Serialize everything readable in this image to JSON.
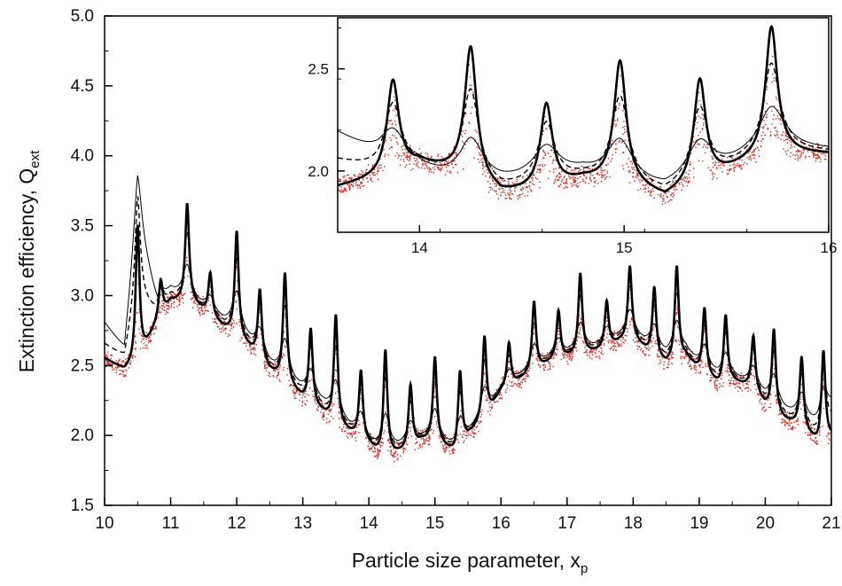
{
  "chart_data": [
    {
      "id": "main",
      "type": "line",
      "xlabel": "Particle size parameter, x",
      "xlabel_sub": "p",
      "ylabel": "Extinction efficiency, Q",
      "ylabel_sub": "ext",
      "xlim": [
        10,
        21
      ],
      "ylim": [
        1.5,
        5.0
      ],
      "xticks": [
        10,
        11,
        12,
        13,
        14,
        15,
        16,
        17,
        18,
        19,
        20,
        21
      ],
      "yticks": [
        1.5,
        2.0,
        2.5,
        3.0,
        3.5,
        4.0,
        4.5,
        5.0
      ],
      "xtick_labels": [
        "10",
        "11",
        "12",
        "13",
        "14",
        "15",
        "16",
        "17",
        "18",
        "19",
        "20",
        "21"
      ],
      "ytick_labels": [
        "1.5",
        "2.0",
        "2.5",
        "3.0",
        "3.5",
        "4.0",
        "4.5",
        "5.0"
      ],
      "grid": false,
      "colors": {
        "curves": "#000000",
        "scatter": "#e0201b"
      },
      "series": [
        {
          "style": "thick-solid",
          "x": [
            10.0,
            10.3,
            10.5,
            10.8,
            11.0,
            11.3,
            11.5,
            11.8,
            12.0,
            12.3,
            12.5,
            12.8,
            13.0,
            13.3,
            13.5,
            13.8,
            14.0,
            14.2,
            14.5,
            14.8,
            15.0,
            15.3,
            15.5,
            15.8,
            16.0,
            16.3,
            16.5,
            16.8,
            17.0,
            17.3,
            17.5,
            17.8,
            18.0,
            18.3,
            18.5,
            18.8,
            19.0,
            19.3,
            19.5,
            19.8,
            20.0,
            20.3,
            20.5,
            20.8,
            21.0
          ],
          "y": [
            2.55,
            2.46,
            2.5,
            2.8,
            2.95,
            2.95,
            2.88,
            2.76,
            2.7,
            2.56,
            2.45,
            2.34,
            2.25,
            2.15,
            2.07,
            1.98,
            1.92,
            1.83,
            1.87,
            1.95,
            1.95,
            1.86,
            1.98,
            2.14,
            2.3,
            2.39,
            2.45,
            2.53,
            2.55,
            2.58,
            2.6,
            2.66,
            2.68,
            2.55,
            2.5,
            2.55,
            2.45,
            2.35,
            2.38,
            2.33,
            2.2,
            2.1,
            2.06,
            1.93,
            1.98
          ]
        },
        {
          "style": "thin-solid",
          "x": [
            10.0,
            10.3,
            10.5,
            10.8,
            11.0,
            11.3,
            11.5,
            11.8,
            12.0,
            12.3,
            12.5,
            12.8,
            13.0,
            13.3,
            13.5,
            13.8,
            14.0,
            14.2,
            14.5,
            14.8,
            15.0,
            15.3,
            15.5,
            15.8,
            16.0,
            16.3,
            16.5,
            16.8,
            17.0,
            17.3,
            17.5,
            17.8,
            18.0,
            18.3,
            18.5,
            18.8,
            19.0,
            19.3,
            19.5,
            19.8,
            20.0,
            20.3,
            20.5,
            20.8,
            21.0
          ],
          "y": [
            2.8,
            2.6,
            3.5,
            2.9,
            3.02,
            2.95,
            2.9,
            2.8,
            2.75,
            2.6,
            2.48,
            2.37,
            2.3,
            2.2,
            2.1,
            2.0,
            1.92,
            1.86,
            1.9,
            1.95,
            1.96,
            1.88,
            1.98,
            2.15,
            2.3,
            2.4,
            2.46,
            2.55,
            2.56,
            2.6,
            2.62,
            2.68,
            2.7,
            2.6,
            2.55,
            2.58,
            2.48,
            2.4,
            2.4,
            2.35,
            2.25,
            2.16,
            2.12,
            2.05,
            2.2
          ]
        },
        {
          "style": "dashed",
          "x": [
            10.0,
            10.3,
            10.5,
            10.8,
            11.0,
            11.3,
            11.5,
            11.8,
            12.0,
            12.3,
            12.5,
            12.8,
            13.0,
            13.3,
            13.5,
            13.8,
            14.0,
            14.2,
            14.5,
            14.8,
            15.0,
            15.3,
            15.5,
            15.8,
            16.0,
            16.3,
            16.5,
            16.8,
            17.0,
            17.3,
            17.5,
            17.8,
            18.0,
            18.3,
            18.5,
            18.8,
            19.0,
            19.3,
            19.5,
            19.8,
            20.0,
            20.3,
            20.5,
            20.8,
            21.0
          ],
          "y": [
            2.65,
            2.55,
            3.0,
            2.85,
            2.98,
            2.95,
            2.88,
            2.78,
            2.72,
            2.58,
            2.46,
            2.35,
            2.28,
            2.17,
            2.08,
            1.99,
            1.92,
            1.85,
            1.88,
            1.95,
            1.95,
            1.87,
            1.98,
            2.14,
            2.3,
            2.39,
            2.45,
            2.54,
            2.55,
            2.59,
            2.61,
            2.67,
            2.69,
            2.57,
            2.52,
            2.56,
            2.46,
            2.37,
            2.39,
            2.34,
            2.22,
            2.12,
            2.08,
            1.98,
            2.1
          ]
        }
      ],
      "peaks": {
        "x": [
          10.5,
          10.85,
          11.25,
          11.6,
          12.0,
          12.35,
          12.73,
          13.12,
          13.5,
          13.88,
          14.25,
          14.63,
          15.0,
          15.38,
          15.75,
          16.12,
          16.5,
          16.87,
          17.2,
          17.6,
          17.95,
          18.32,
          18.66,
          19.08,
          19.4,
          19.82,
          20.13,
          20.55,
          20.88
        ],
        "y": [
          3.5,
          3.1,
          3.65,
          3.15,
          3.45,
          3.03,
          3.15,
          2.75,
          2.85,
          2.45,
          2.6,
          2.35,
          2.55,
          2.45,
          2.7,
          2.65,
          2.95,
          2.88,
          3.15,
          2.95,
          3.2,
          3.05,
          3.2,
          2.9,
          2.85,
          2.7,
          2.75,
          2.55,
          2.6
        ]
      },
      "scatter_note": "red simulated data points scattered along the curves"
    },
    {
      "id": "inset",
      "type": "line",
      "xlim": [
        13.6,
        16.0
      ],
      "ylim": [
        1.7,
        2.75
      ],
      "xticks": [
        14,
        15,
        16
      ],
      "yticks": [
        2.0,
        2.5
      ],
      "xtick_labels": [
        "14",
        "15",
        "16"
      ],
      "ytick_labels": [
        "2.0",
        "2.5"
      ],
      "grid": false,
      "series": [
        {
          "style": "thick-solid",
          "x": [
            13.6,
            13.8,
            14.0,
            14.2,
            14.4,
            14.6,
            14.8,
            15.0,
            15.2,
            15.4,
            15.6,
            15.8,
            16.0
          ],
          "y": [
            1.92,
            1.96,
            2.03,
            1.98,
            1.88,
            1.9,
            1.95,
            1.94,
            1.86,
            1.95,
            2.03,
            2.08,
            2.08
          ]
        },
        {
          "style": "thin-solid",
          "x": [
            13.6,
            13.8,
            14.0,
            14.2,
            14.4,
            14.6,
            14.8,
            15.0,
            15.2,
            15.4,
            15.6,
            15.8,
            16.0
          ],
          "y": [
            2.18,
            2.06,
            2.0,
            1.92,
            1.93,
            1.96,
            1.98,
            1.93,
            1.9,
            1.97,
            2.05,
            2.1,
            2.1
          ]
        },
        {
          "style": "dashed",
          "x": [
            13.6,
            13.8,
            14.0,
            14.2,
            14.4,
            14.6,
            14.8,
            15.0,
            15.2,
            15.4,
            15.6,
            15.8,
            16.0
          ],
          "y": [
            2.05,
            2.0,
            2.02,
            1.95,
            1.9,
            1.93,
            1.96,
            1.94,
            1.88,
            1.96,
            2.04,
            2.09,
            2.09
          ]
        }
      ],
      "peaks": {
        "x": [
          13.87,
          14.25,
          14.62,
          14.98,
          15.37,
          15.72
        ],
        "y": [
          2.44,
          2.6,
          2.32,
          2.53,
          2.44,
          2.7
        ]
      }
    }
  ]
}
